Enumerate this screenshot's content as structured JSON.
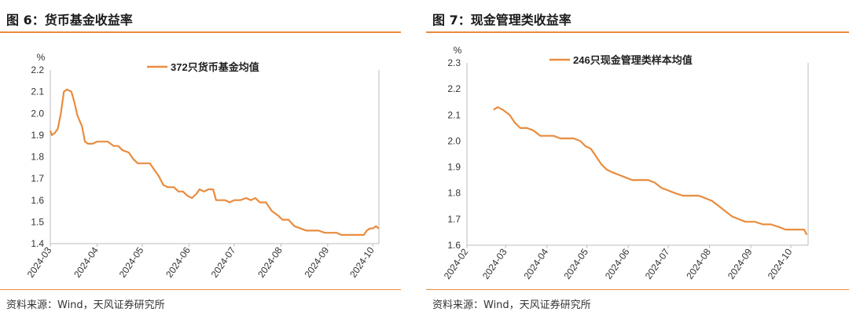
{
  "left": {
    "title": "图 6：货币基金收益率",
    "source": "资料来源：Wind，天风证券研究所",
    "chart_data": {
      "type": "line",
      "legend": "372只货币基金均值",
      "legend_position": "top-center",
      "ylabel": "%",
      "ylim": [
        1.4,
        2.2
      ],
      "yticks": [
        "1.4",
        "1.5",
        "1.6",
        "1.7",
        "1.8",
        "1.9",
        "2.0",
        "2.1",
        "2.2"
      ],
      "xlim": [
        "2024-03-01",
        "2024-10-05"
      ],
      "xticks": [
        "2024-03",
        "2024-04",
        "2024-05",
        "2024-06",
        "2024-07",
        "2024-08",
        "2024-09",
        "2024-10"
      ],
      "color": "#E98C3F",
      "series": [
        {
          "name": "372只货币基金均值",
          "points": [
            [
              "2024-03-01",
              1.92
            ],
            [
              "2024-03-02",
              1.9
            ],
            [
              "2024-03-04",
              1.91
            ],
            [
              "2024-03-06",
              1.93
            ],
            [
              "2024-03-08",
              2.0
            ],
            [
              "2024-03-10",
              2.1
            ],
            [
              "2024-03-12",
              2.11
            ],
            [
              "2024-03-15",
              2.1
            ],
            [
              "2024-03-17",
              2.05
            ],
            [
              "2024-03-19",
              1.99
            ],
            [
              "2024-03-22",
              1.94
            ],
            [
              "2024-03-24",
              1.87
            ],
            [
              "2024-03-26",
              1.86
            ],
            [
              "2024-03-29",
              1.86
            ],
            [
              "2024-04-01",
              1.87
            ],
            [
              "2024-04-05",
              1.87
            ],
            [
              "2024-04-08",
              1.87
            ],
            [
              "2024-04-10",
              1.86
            ],
            [
              "2024-04-12",
              1.85
            ],
            [
              "2024-04-15",
              1.85
            ],
            [
              "2024-04-18",
              1.83
            ],
            [
              "2024-04-22",
              1.82
            ],
            [
              "2024-04-25",
              1.79
            ],
            [
              "2024-04-28",
              1.77
            ],
            [
              "2024-05-01",
              1.77
            ],
            [
              "2024-05-06",
              1.77
            ],
            [
              "2024-05-09",
              1.74
            ],
            [
              "2024-05-12",
              1.71
            ],
            [
              "2024-05-15",
              1.67
            ],
            [
              "2024-05-18",
              1.66
            ],
            [
              "2024-05-22",
              1.66
            ],
            [
              "2024-05-25",
              1.64
            ],
            [
              "2024-05-28",
              1.64
            ],
            [
              "2024-05-31",
              1.62
            ],
            [
              "2024-06-03",
              1.61
            ],
            [
              "2024-06-06",
              1.63
            ],
            [
              "2024-06-08",
              1.65
            ],
            [
              "2024-06-11",
              1.64
            ],
            [
              "2024-06-14",
              1.65
            ],
            [
              "2024-06-17",
              1.65
            ],
            [
              "2024-06-19",
              1.6
            ],
            [
              "2024-06-22",
              1.6
            ],
            [
              "2024-06-25",
              1.6
            ],
            [
              "2024-06-28",
              1.59
            ],
            [
              "2024-07-01",
              1.6
            ],
            [
              "2024-07-05",
              1.6
            ],
            [
              "2024-07-09",
              1.61
            ],
            [
              "2024-07-12",
              1.6
            ],
            [
              "2024-07-15",
              1.61
            ],
            [
              "2024-07-18",
              1.59
            ],
            [
              "2024-07-22",
              1.59
            ],
            [
              "2024-07-26",
              1.55
            ],
            [
              "2024-07-30",
              1.53
            ],
            [
              "2024-08-02",
              1.51
            ],
            [
              "2024-08-06",
              1.51
            ],
            [
              "2024-08-10",
              1.48
            ],
            [
              "2024-08-14",
              1.47
            ],
            [
              "2024-08-18",
              1.46
            ],
            [
              "2024-08-22",
              1.46
            ],
            [
              "2024-08-26",
              1.46
            ],
            [
              "2024-08-30",
              1.45
            ],
            [
              "2024-09-03",
              1.45
            ],
            [
              "2024-09-07",
              1.45
            ],
            [
              "2024-09-10",
              1.44
            ],
            [
              "2024-09-14",
              1.44
            ],
            [
              "2024-09-18",
              1.44
            ],
            [
              "2024-09-22",
              1.44
            ],
            [
              "2024-09-25",
              1.44
            ],
            [
              "2024-09-27",
              1.46
            ],
            [
              "2024-09-29",
              1.47
            ],
            [
              "2024-10-01",
              1.47
            ],
            [
              "2024-10-03",
              1.48
            ],
            [
              "2024-10-05",
              1.47
            ]
          ]
        }
      ]
    }
  },
  "right": {
    "title": "图 7：现金管理类收益率",
    "source": "资料来源：Wind，天风证券研究所",
    "chart_data": {
      "type": "line",
      "legend": "246只现金管理类样本均值",
      "legend_position": "top-center",
      "ylabel": "%",
      "ylim": [
        1.6,
        2.3
      ],
      "yticks": [
        "1.6",
        "1.7",
        "1.8",
        "1.9",
        "2.0",
        "2.1",
        "2.2",
        "2.3"
      ],
      "xlim": [
        "2024-02-01",
        "2024-10-14"
      ],
      "xticks": [
        "2024-02",
        "2024-03",
        "2024-04",
        "2024-05",
        "2024-06",
        "2024-07",
        "2024-08",
        "2024-09",
        "2024-10"
      ],
      "color": "#E98C3F",
      "series": [
        {
          "name": "246只现金管理类样本均值",
          "points": [
            [
              "2024-02-21",
              2.12
            ],
            [
              "2024-02-24",
              2.13
            ],
            [
              "2024-02-28",
              2.12
            ],
            [
              "2024-03-04",
              2.1
            ],
            [
              "2024-03-08",
              2.07
            ],
            [
              "2024-03-12",
              2.05
            ],
            [
              "2024-03-17",
              2.05
            ],
            [
              "2024-03-22",
              2.04
            ],
            [
              "2024-03-27",
              2.02
            ],
            [
              "2024-04-01",
              2.02
            ],
            [
              "2024-04-06",
              2.02
            ],
            [
              "2024-04-11",
              2.01
            ],
            [
              "2024-04-16",
              2.01
            ],
            [
              "2024-04-21",
              2.01
            ],
            [
              "2024-04-26",
              2.0
            ],
            [
              "2024-04-30",
              1.98
            ],
            [
              "2024-05-04",
              1.97
            ],
            [
              "2024-05-08",
              1.94
            ],
            [
              "2024-05-12",
              1.91
            ],
            [
              "2024-05-16",
              1.89
            ],
            [
              "2024-05-20",
              1.88
            ],
            [
              "2024-05-25",
              1.87
            ],
            [
              "2024-05-30",
              1.86
            ],
            [
              "2024-06-04",
              1.85
            ],
            [
              "2024-06-10",
              1.85
            ],
            [
              "2024-06-16",
              1.85
            ],
            [
              "2024-06-21",
              1.84
            ],
            [
              "2024-06-26",
              1.82
            ],
            [
              "2024-07-01",
              1.81
            ],
            [
              "2024-07-06",
              1.8
            ],
            [
              "2024-07-12",
              1.79
            ],
            [
              "2024-07-18",
              1.79
            ],
            [
              "2024-07-24",
              1.79
            ],
            [
              "2024-07-29",
              1.78
            ],
            [
              "2024-08-03",
              1.77
            ],
            [
              "2024-08-08",
              1.75
            ],
            [
              "2024-08-13",
              1.73
            ],
            [
              "2024-08-18",
              1.71
            ],
            [
              "2024-08-23",
              1.7
            ],
            [
              "2024-08-28",
              1.69
            ],
            [
              "2024-09-04",
              1.69
            ],
            [
              "2024-09-10",
              1.68
            ],
            [
              "2024-09-16",
              1.68
            ],
            [
              "2024-09-22",
              1.67
            ],
            [
              "2024-09-27",
              1.66
            ],
            [
              "2024-10-03",
              1.66
            ],
            [
              "2024-10-08",
              1.66
            ],
            [
              "2024-10-11",
              1.66
            ],
            [
              "2024-10-13",
              1.64
            ]
          ]
        }
      ]
    }
  }
}
